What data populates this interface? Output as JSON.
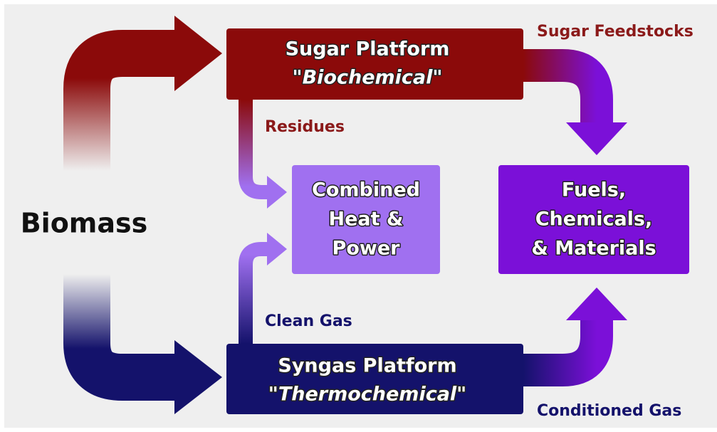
{
  "nodes": [
    {
      "label": "Biomass"
    },
    {
      "label": "Sugar Platform",
      "sublabel": "\"Biochemical\""
    },
    {
      "label_lines": [
        "Combined",
        "Heat &",
        "Power"
      ]
    },
    {
      "label_lines": [
        "Fuels,",
        "Chemicals,",
        "& Materials"
      ]
    },
    {
      "label": "Syngas Platform",
      "sublabel": "\"Thermochemical\""
    }
  ],
  "edges": [
    {
      "label": "Sugar Feedstocks"
    },
    {
      "label": "Residues"
    },
    {
      "label": "Clean Gas"
    },
    {
      "label": "Conditioned Gas"
    }
  ]
}
